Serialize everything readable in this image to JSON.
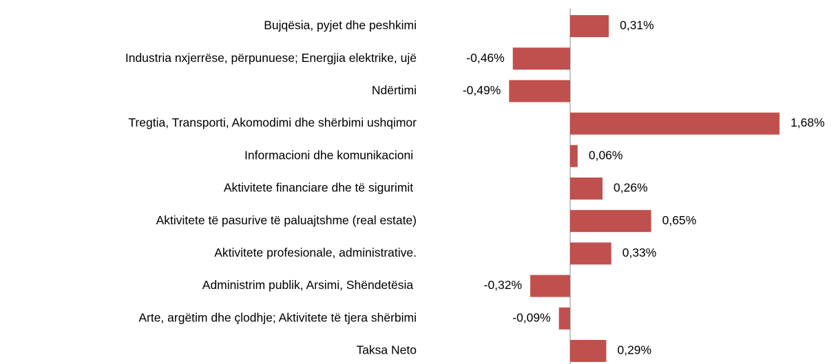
{
  "chart_data": {
    "type": "bar",
    "orientation": "horizontal",
    "categories": [
      "Bujqësia, pyjet dhe peshkimi",
      "Industria nxjerrëse, përpunuese; Energjia elektrike, ujë",
      "Ndërtimi",
      "Tregtia, Transporti, Akomodimi dhe shërbimi ushqimor",
      "Informacioni dhe komunikacioni ",
      "Aktivitete financiare dhe të sigurimit ",
      "Aktivitete të pasurive të paluajtshme (real estate)",
      "Aktivitete profesionale, administrative.",
      "Administrim publik, Arsimi, Shëndetësia ",
      "Arte, argëtim dhe çlodhje; Aktivitete të tjera shërbimi",
      "Taksa Neto"
    ],
    "values": [
      0.31,
      -0.46,
      -0.49,
      1.68,
      0.06,
      0.26,
      0.65,
      0.33,
      -0.32,
      -0.09,
      0.29
    ],
    "value_labels": [
      "0,31%",
      "-0,46%",
      "-0,49%",
      "1,68%",
      "0,06%",
      "0,26%",
      "0,65%",
      "0,33%",
      "-0,32%",
      "-0,09%",
      "0,29%"
    ],
    "color": "#c0504d"
  }
}
